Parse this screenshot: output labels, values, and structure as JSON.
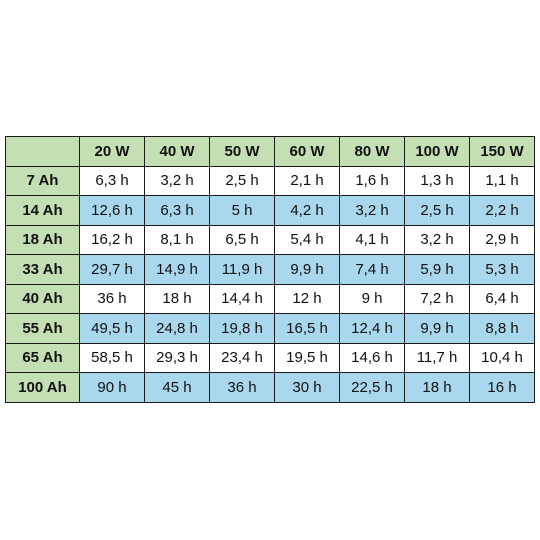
{
  "table": {
    "columns": [
      "20 W",
      "40 W",
      "50 W",
      "60 W",
      "80 W",
      "100 W",
      "150 W"
    ],
    "rows": [
      {
        "label": "7 Ah",
        "shaded": false,
        "values": [
          "6,3 h",
          "3,2 h",
          "2,5 h",
          "2,1 h",
          "1,6 h",
          "1,3 h",
          "1,1 h"
        ]
      },
      {
        "label": "14 Ah",
        "shaded": true,
        "values": [
          "12,6 h",
          "6,3 h",
          "5 h",
          "4,2 h",
          "3,2 h",
          "2,5 h",
          "2,2 h"
        ]
      },
      {
        "label": "18 Ah",
        "shaded": false,
        "values": [
          "16,2 h",
          "8,1 h",
          "6,5 h",
          "5,4 h",
          "4,1 h",
          "3,2 h",
          "2,9 h"
        ]
      },
      {
        "label": "33 Ah",
        "shaded": true,
        "values": [
          "29,7 h",
          "14,9 h",
          "11,9 h",
          "9,9 h",
          "7,4 h",
          "5,9 h",
          "5,3 h"
        ]
      },
      {
        "label": "40 Ah",
        "shaded": false,
        "values": [
          "36 h",
          "18 h",
          "14,4 h",
          "12 h",
          "9 h",
          "7,2 h",
          "6,4 h"
        ]
      },
      {
        "label": "55 Ah",
        "shaded": true,
        "values": [
          "49,5 h",
          "24,8 h",
          "19,8 h",
          "16,5 h",
          "12,4 h",
          "9,9 h",
          "8,8 h"
        ]
      },
      {
        "label": "65 Ah",
        "shaded": false,
        "values": [
          "58,5 h",
          "29,3 h",
          "23,4 h",
          "19,5 h",
          "14,6 h",
          "11,7 h",
          "10,4 h"
        ]
      },
      {
        "label": "100 Ah",
        "shaded": true,
        "values": [
          "90 h",
          "45 h",
          "36 h",
          "30 h",
          "22,5 h",
          "18 h",
          "16 h"
        ]
      }
    ]
  },
  "colors": {
    "header_green": "#c5dfb4",
    "row_blue": "#a8d7ee",
    "border": "#1a1a1a"
  }
}
